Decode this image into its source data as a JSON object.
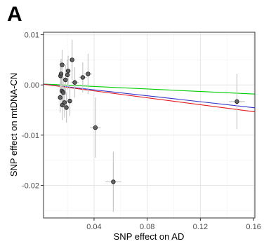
{
  "panel_label": "A",
  "chart_data": {
    "type": "scatter",
    "title": "",
    "xlabel": "SNP effect on AD",
    "ylabel": "SNP effect on mtDNA-CN",
    "xlim": [
      0.002,
      0.161
    ],
    "ylim": [
      -0.0265,
      0.0105
    ],
    "x_ticks": [
      0.04,
      0.08,
      0.12,
      0.16
    ],
    "x_tick_labels": [
      "0.04",
      "0.08",
      "0.12",
      "0.16"
    ],
    "y_ticks": [
      0.01,
      0.0,
      -0.01,
      -0.02
    ],
    "y_tick_labels": [
      "0.01",
      "0.00",
      "-0.01",
      "-0.02"
    ],
    "grid": true,
    "point_color": "#555555",
    "errorbar_color": "#c7c7c7",
    "points": [
      {
        "x": 0.0148,
        "y": 0.0018,
        "xerr": 0.0015,
        "yerr": 0.003
      },
      {
        "x": 0.0152,
        "y": 0.0022,
        "xerr": 0.0015,
        "yerr": 0.003
      },
      {
        "x": 0.016,
        "y": 0.004,
        "xerr": 0.002,
        "yerr": 0.003
      },
      {
        "x": 0.0145,
        "y": -0.0025,
        "xerr": 0.0015,
        "yerr": 0.003
      },
      {
        "x": 0.0158,
        "y": -0.0012,
        "xerr": 0.0015,
        "yerr": 0.003
      },
      {
        "x": 0.0168,
        "y": -0.0015,
        "xerr": 0.0015,
        "yerr": 0.003
      },
      {
        "x": 0.0162,
        "y": -0.004,
        "xerr": 0.0015,
        "yerr": 0.003
      },
      {
        "x": 0.0178,
        "y": -0.0035,
        "xerr": 0.0015,
        "yerr": 0.003
      },
      {
        "x": 0.0185,
        "y": 0.001,
        "xerr": 0.002,
        "yerr": 0.003
      },
      {
        "x": 0.0192,
        "y": -0.0045,
        "xerr": 0.0015,
        "yerr": 0.003
      },
      {
        "x": 0.02,
        "y": 0.002,
        "xerr": 0.002,
        "yerr": 0.003
      },
      {
        "x": 0.0205,
        "y": 0.0028,
        "xerr": 0.002,
        "yerr": 0.003
      },
      {
        "x": 0.0218,
        "y": -0.0032,
        "xerr": 0.0015,
        "yerr": 0.003
      },
      {
        "x": 0.0235,
        "y": 0.005,
        "xerr": 0.002,
        "yerr": 0.004
      },
      {
        "x": 0.0255,
        "y": 0.0005,
        "xerr": 0.003,
        "yerr": 0.003
      },
      {
        "x": 0.0315,
        "y": 0.0015,
        "xerr": 0.003,
        "yerr": 0.003
      },
      {
        "x": 0.0355,
        "y": 0.0022,
        "xerr": 0.003,
        "yerr": 0.004
      },
      {
        "x": 0.041,
        "y": -0.0085,
        "xerr": 0.004,
        "yerr": 0.006
      },
      {
        "x": 0.0545,
        "y": -0.0193,
        "xerr": 0.006,
        "yerr": 0.006
      },
      {
        "x": 0.1475,
        "y": -0.0033,
        "xerr": 0.006,
        "yerr": 0.0055
      }
    ],
    "lines": [
      {
        "color": "#00cc00",
        "slope": -0.0125,
        "intercept": 0.0002
      },
      {
        "color": "#3333cc",
        "slope": -0.0295,
        "intercept": 0.0002
      },
      {
        "color": "#e41a1c",
        "slope": -0.0345,
        "intercept": 0.0002
      }
    ]
  }
}
